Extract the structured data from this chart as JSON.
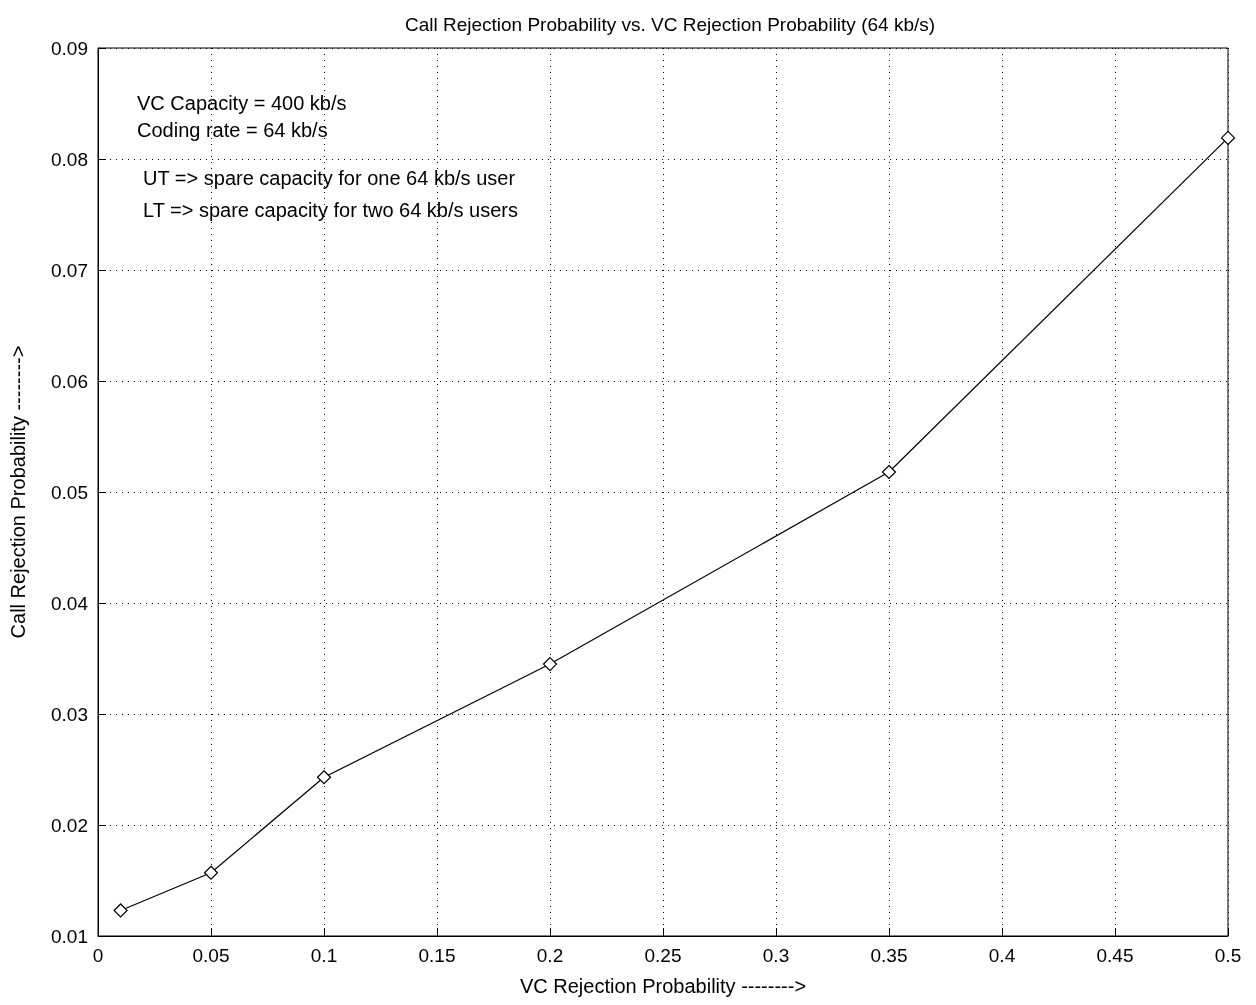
{
  "chart_data": {
    "type": "line",
    "title": "Call Rejection Probability vs. VC Rejection Probability (64 kb/s)",
    "xlabel": "VC Rejection Probability -------->",
    "ylabel": "Call Rejection Probability -------->",
    "annotations": [
      "VC Capacity = 400 kb/s",
      "Coding rate = 64 kb/s",
      "UT => spare capacity for one 64 kb/s user",
      "LT => spare capacity for two 64 kb/s users"
    ],
    "x": [
      0.01,
      0.05,
      0.1,
      0.2,
      0.35,
      0.5
    ],
    "series": [
      {
        "color": "#000000",
        "values": [
          0.0123,
          0.0157,
          0.0243,
          0.0345,
          0.0518,
          0.0819
        ]
      }
    ],
    "xlim": [
      0,
      0.5
    ],
    "xticks": [
      0,
      0.05,
      0.1,
      0.15,
      0.2,
      0.25,
      0.3,
      0.35,
      0.4,
      0.45,
      0.5
    ],
    "ylim": [
      0.01,
      0.09
    ],
    "yticks": [
      0.01,
      0.02,
      0.03,
      0.04,
      0.05,
      0.06,
      0.07,
      0.08,
      0.09
    ],
    "grid": true,
    "marker": "diamond",
    "line_style": "solid"
  }
}
